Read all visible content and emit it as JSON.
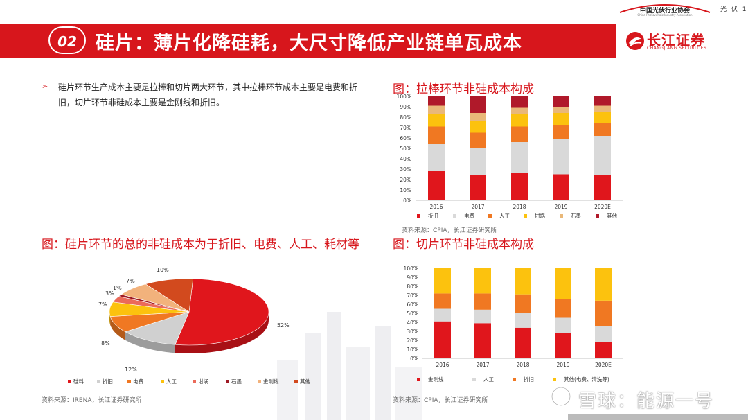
{
  "header": {
    "association_name": "中国光伏行业协会",
    "association_sub": "China Photovoltaic Industry Association",
    "right_text": "光 伏 1"
  },
  "banner": {
    "number": "02",
    "title": "硅片：薄片化降硅耗，大尺寸降低产业链单瓦成本",
    "color": "#d7161c"
  },
  "logo": {
    "name_cn": "长江证券",
    "name_en": "CHANGJIANG SECURITIES"
  },
  "bullet": {
    "text": "硅片环节生产成本主要是拉棒和切片两大环节，其中拉棒环节成本主要是电费和折旧，切片环节非硅成本主要是金刚线和折旧。"
  },
  "figures": {
    "pull": {
      "title": "图：拉棒环节非硅成本构成",
      "source": "资料来源：CPIA，长江证券研究所"
    },
    "pie": {
      "title": "图：硅片环节的总的非硅成本为于折旧、电费、人工、耗材等",
      "source": "资料来源：IRENA，长江证券研究所"
    },
    "slice": {
      "title": "图：切片环节非硅成本构成",
      "source": "资料来源：CPIA，长江证券研究所"
    }
  },
  "watermark": {
    "text": "雪球：能源一号"
  },
  "chart_data": [
    {
      "type": "bar",
      "stacked": true,
      "categories": [
        "2016",
        "2017",
        "2018",
        "2019",
        "2020E"
      ],
      "yticks": [
        "0%",
        "10%",
        "20%",
        "30%",
        "40%",
        "50%",
        "60%",
        "70%",
        "80%",
        "90%",
        "100%"
      ],
      "ylim": [
        0,
        100
      ],
      "legend_position": "bottom",
      "series": [
        {
          "name": "折旧",
          "color": "#e0161c",
          "values": [
            28,
            24,
            26,
            25,
            24
          ]
        },
        {
          "name": "电费",
          "color": "#d9d9d9",
          "values": [
            26,
            26,
            30,
            34,
            38
          ]
        },
        {
          "name": "人工",
          "color": "#f07822",
          "values": [
            17,
            15,
            15,
            13,
            12
          ]
        },
        {
          "name": "坩埚",
          "color": "#fcc20e",
          "values": [
            12,
            11,
            12,
            12,
            11
          ]
        },
        {
          "name": "石墨",
          "color": "#e9b879",
          "values": [
            8,
            8,
            6,
            6,
            6
          ]
        },
        {
          "name": "其他",
          "color": "#b0192a",
          "values": [
            9,
            16,
            11,
            10,
            9
          ]
        }
      ]
    },
    {
      "type": "pie",
      "labels": [
        "硅料",
        "折旧",
        "电费",
        "人工",
        "坩埚",
        "石墨",
        "金刚线",
        "其他"
      ],
      "values": [
        52,
        12,
        8,
        7,
        3,
        1,
        7,
        10
      ],
      "value_labels": [
        "52%",
        "12%",
        "8%",
        "7%",
        "3%",
        "1%",
        "7%",
        "10%"
      ],
      "colors": [
        "#e0161c",
        "#d0d0d0",
        "#f07822",
        "#fcc20e",
        "#eb6a5a",
        "#9e1a24",
        "#f2b27c",
        "#d24a1e"
      ],
      "legend_position": "bottom"
    },
    {
      "type": "bar",
      "stacked": true,
      "categories": [
        "2016",
        "2017",
        "2018",
        "2019",
        "2020E"
      ],
      "yticks": [
        "0%",
        "10%",
        "20%",
        "30%",
        "40%",
        "50%",
        "60%",
        "70%",
        "80%",
        "90%",
        "100%"
      ],
      "ylim": [
        0,
        100
      ],
      "legend_position": "bottom",
      "series": [
        {
          "name": "金刚线",
          "color": "#e0161c",
          "values": [
            41,
            39,
            34,
            28,
            18
          ]
        },
        {
          "name": "人工",
          "color": "#d9d9d9",
          "values": [
            14,
            15,
            16,
            17,
            18
          ]
        },
        {
          "name": "折旧",
          "color": "#f07822",
          "values": [
            17,
            18,
            21,
            21,
            28
          ]
        },
        {
          "name": "其他(电费、清洗等)",
          "color": "#fcc20e",
          "values": [
            28,
            28,
            29,
            34,
            36
          ]
        }
      ]
    }
  ]
}
